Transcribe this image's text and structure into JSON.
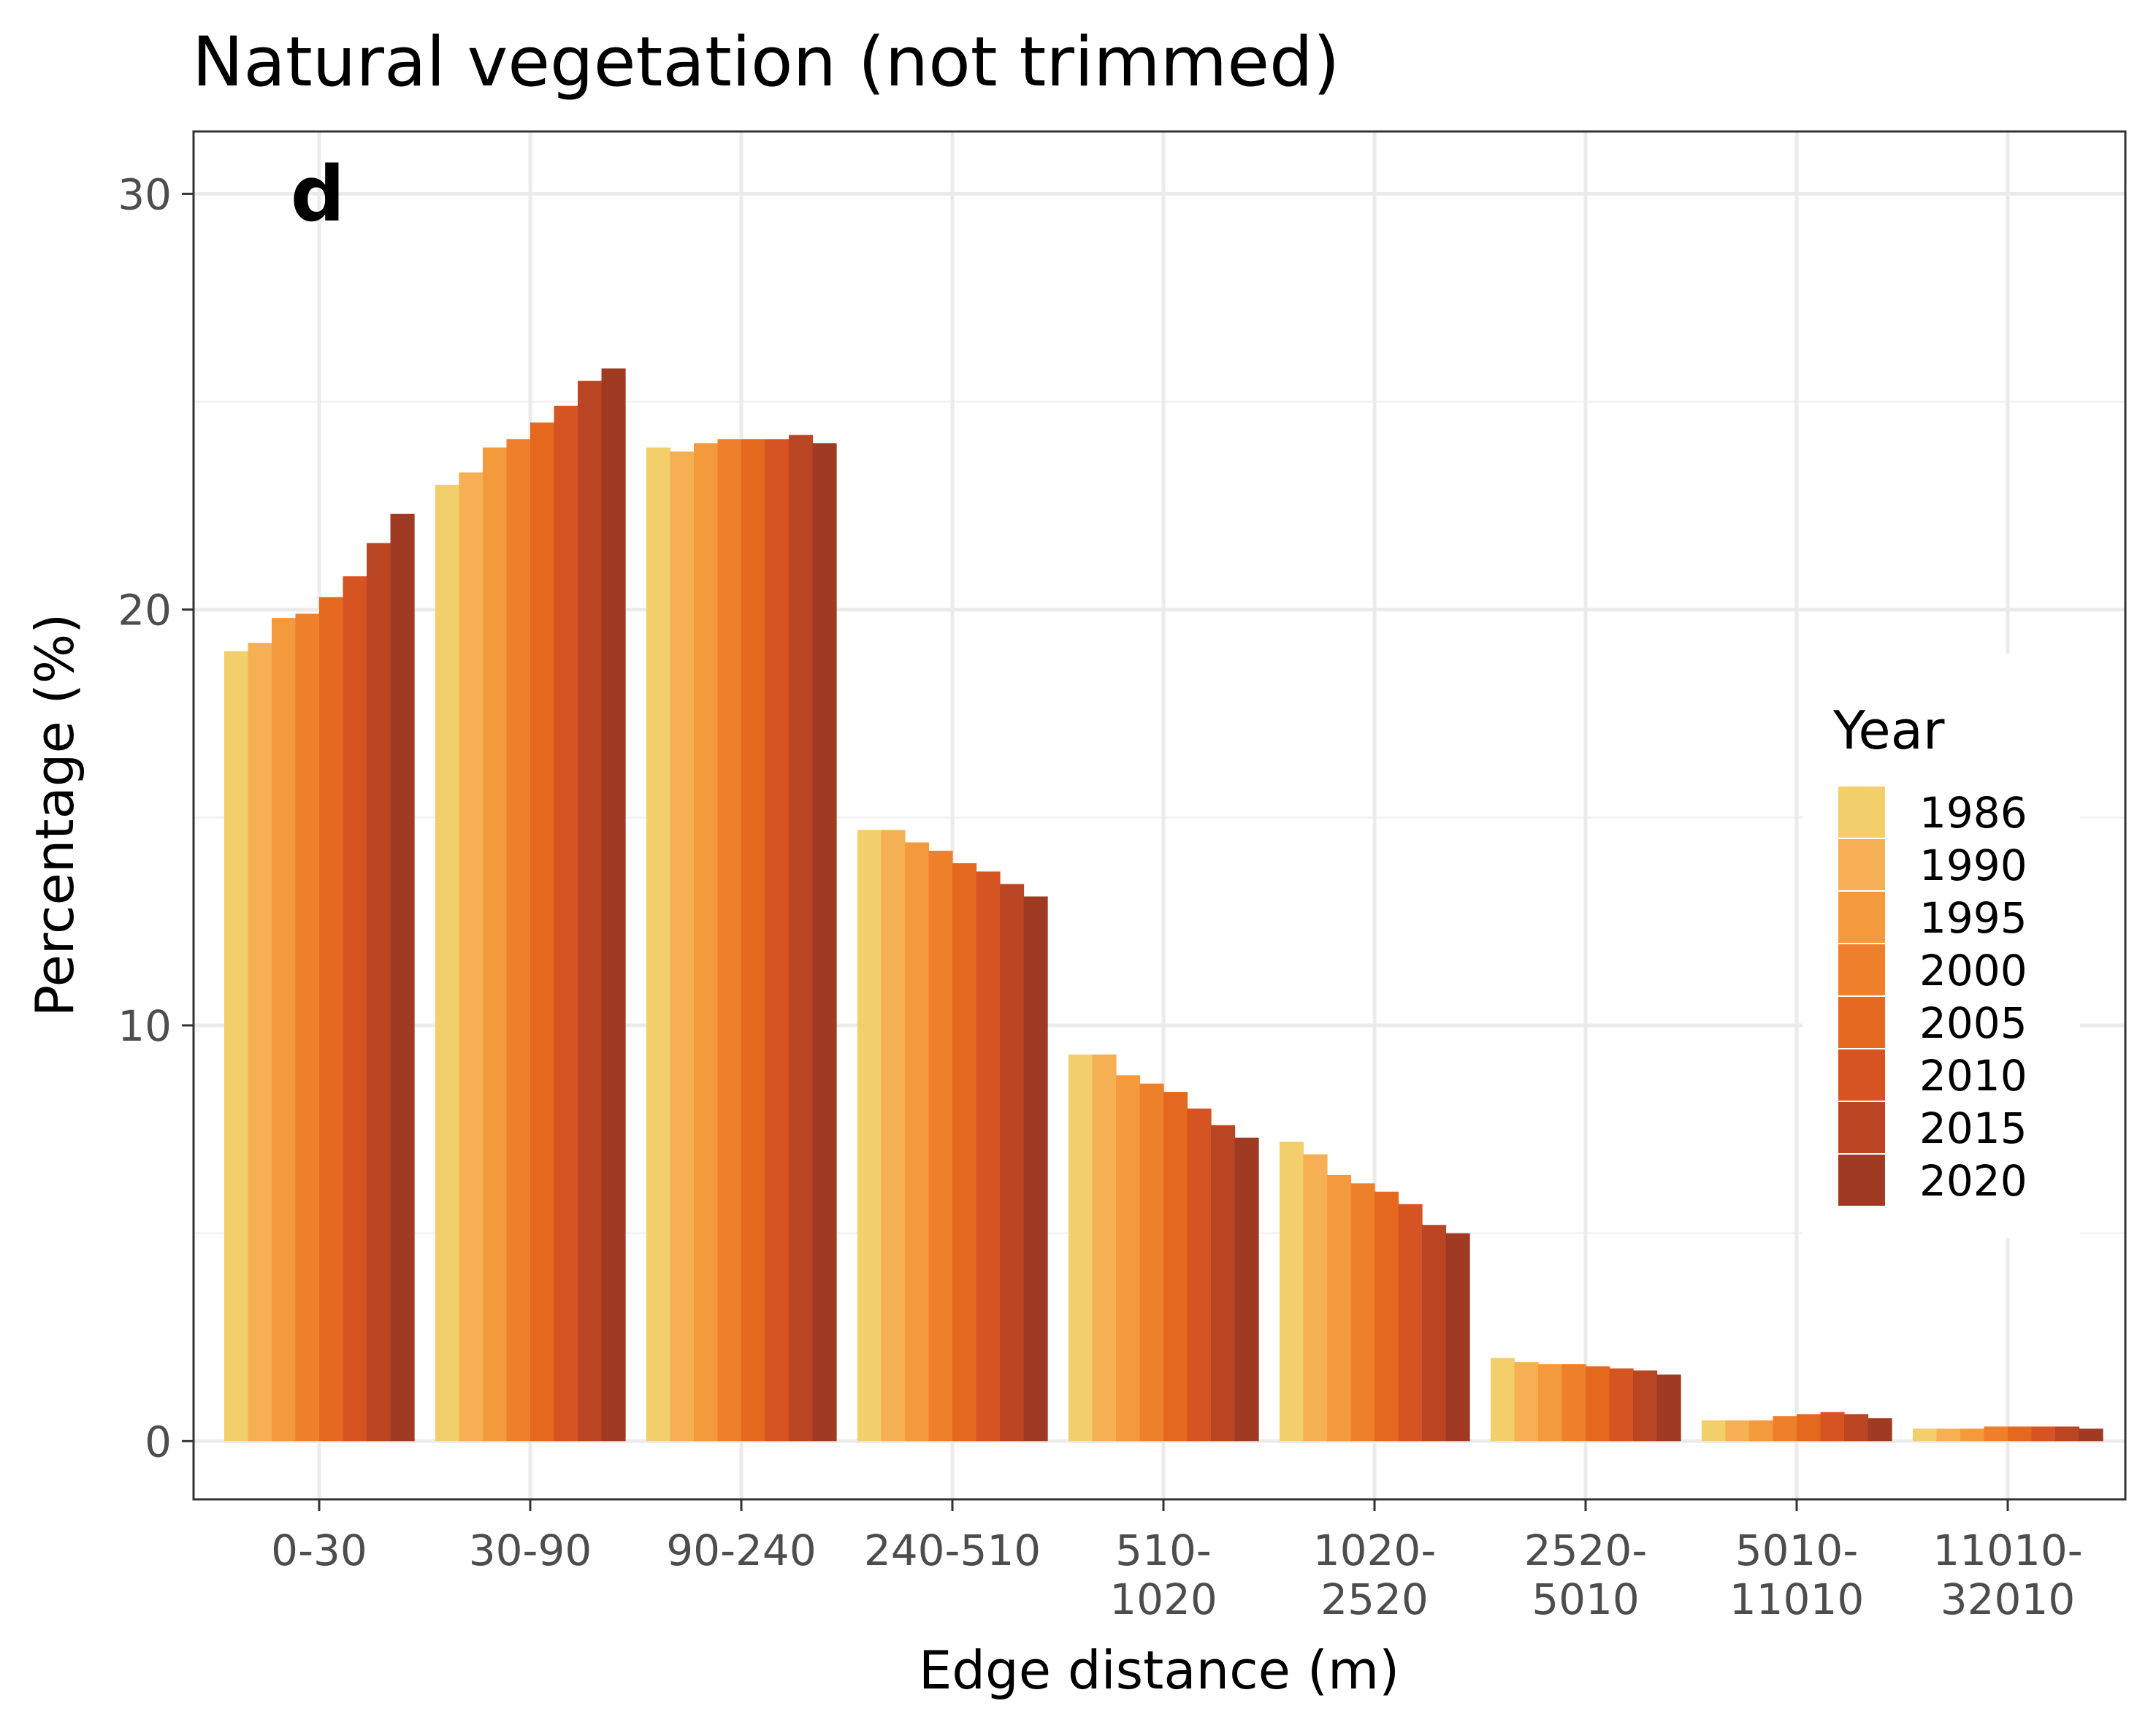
{
  "chart_data": {
    "type": "bar",
    "title": "Natural vegetation (not trimmed)",
    "panel_label": "d",
    "xlabel": "Edge distance (m)",
    "ylabel": "Percentage (%)",
    "categories": [
      "0-30",
      "30-90",
      "90-240",
      "240-510",
      "510-1020",
      "1020-2520",
      "2520-5010",
      "5010-11010",
      "11010-32010"
    ],
    "category_tick_lines": [
      [
        "0-30"
      ],
      [
        "30-90"
      ],
      [
        "90-240"
      ],
      [
        "240-510"
      ],
      [
        "510-",
        "1020"
      ],
      [
        "1020-",
        "2520"
      ],
      [
        "2520-",
        "5010"
      ],
      [
        "5010-",
        "11010"
      ],
      [
        "11010-",
        "32010"
      ]
    ],
    "ylim": [
      -1.4,
      31.5
    ],
    "yticks": [
      0,
      10,
      20,
      30
    ],
    "grid": true,
    "legend": {
      "title": "Year",
      "position": "right"
    },
    "series": [
      {
        "name": "1986",
        "color": "#F2CF6A",
        "values": [
          19.0,
          23.0,
          23.9,
          14.7,
          9.3,
          7.2,
          2.0,
          0.5,
          0.3
        ]
      },
      {
        "name": "1990",
        "color": "#F5B053",
        "values": [
          19.2,
          23.3,
          23.8,
          14.7,
          9.3,
          6.9,
          1.9,
          0.5,
          0.3
        ]
      },
      {
        "name": "1995",
        "color": "#F39A3D",
        "values": [
          19.8,
          23.9,
          24.0,
          14.4,
          8.8,
          6.4,
          1.85,
          0.5,
          0.3
        ]
      },
      {
        "name": "2000",
        "color": "#EE7F2B",
        "values": [
          19.9,
          24.1,
          24.1,
          14.2,
          8.6,
          6.2,
          1.85,
          0.6,
          0.35
        ]
      },
      {
        "name": "2005",
        "color": "#E5681F",
        "values": [
          20.3,
          24.5,
          24.1,
          13.9,
          8.4,
          6.0,
          1.8,
          0.65,
          0.35
        ]
      },
      {
        "name": "2010",
        "color": "#D55421",
        "values": [
          20.8,
          24.9,
          24.1,
          13.7,
          8.0,
          5.7,
          1.75,
          0.7,
          0.35
        ]
      },
      {
        "name": "2015",
        "color": "#BA4523",
        "values": [
          21.6,
          25.5,
          24.2,
          13.4,
          7.6,
          5.2,
          1.7,
          0.65,
          0.35
        ]
      },
      {
        "name": "2020",
        "color": "#A03A22",
        "values": [
          22.3,
          25.8,
          24.0,
          13.1,
          7.3,
          5.0,
          1.6,
          0.55,
          0.3
        ]
      }
    ]
  }
}
